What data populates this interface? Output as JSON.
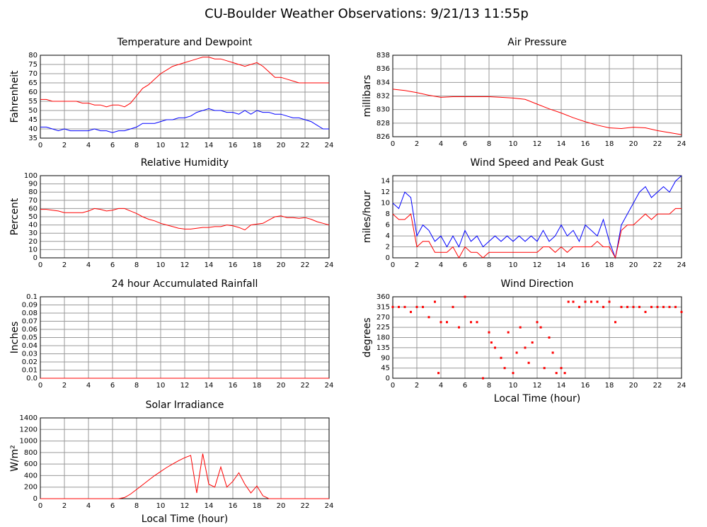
{
  "title": "CU-Boulder Weather Observations: 9/21/13 11:55p",
  "chart_data": [
    {
      "type": "line",
      "title": "Temperature and Dewpoint",
      "ylabel": "Fahrenheit",
      "x": [
        0,
        0.5,
        1,
        1.5,
        2,
        2.5,
        3,
        3.5,
        4,
        4.5,
        5,
        5.5,
        6,
        6.5,
        7,
        7.5,
        8,
        8.5,
        9,
        9.5,
        10,
        10.5,
        11,
        11.5,
        12,
        12.5,
        13,
        13.5,
        14,
        14.5,
        15,
        15.5,
        16,
        16.5,
        17,
        17.5,
        18,
        18.5,
        19,
        19.5,
        20,
        20.5,
        21,
        21.5,
        22,
        22.5,
        23,
        23.5,
        24
      ],
      "series": [
        {
          "color": "#ff0000",
          "values": [
            56,
            56,
            55,
            55,
            55,
            55,
            55,
            54,
            54,
            53,
            53,
            52,
            53,
            53,
            52,
            54,
            58,
            62,
            64,
            67,
            70,
            72,
            74,
            75,
            76,
            77,
            78,
            79,
            79,
            78,
            78,
            77,
            76,
            75,
            74,
            75,
            76,
            74,
            71,
            68,
            68,
            67,
            66,
            65,
            65,
            65,
            65,
            65,
            65
          ]
        },
        {
          "color": "#0000ff",
          "values": [
            41,
            41,
            40,
            39,
            40,
            39,
            39,
            39,
            39,
            40,
            39,
            39,
            38,
            39,
            39,
            40,
            41,
            43,
            43,
            43,
            44,
            45,
            45,
            46,
            46,
            47,
            49,
            50,
            51,
            50,
            50,
            49,
            49,
            48,
            50,
            48,
            50,
            49,
            49,
            48,
            48,
            47,
            46,
            46,
            45,
            44,
            42,
            40,
            40
          ]
        }
      ],
      "xlim": [
        0,
        24
      ],
      "ylim": [
        35,
        80
      ],
      "xticks": [
        0,
        2,
        4,
        6,
        8,
        10,
        12,
        14,
        16,
        18,
        20,
        22,
        24
      ],
      "yticks": [
        35,
        40,
        45,
        50,
        55,
        60,
        65,
        70,
        75,
        80
      ],
      "grid": true
    },
    {
      "type": "line",
      "title": "Air Pressure",
      "ylabel": "millibars",
      "x": [
        0,
        1,
        2,
        3,
        4,
        5,
        6,
        7,
        8,
        9,
        10,
        11,
        12,
        13,
        14,
        15,
        16,
        17,
        18,
        19,
        20,
        21,
        22,
        23,
        24
      ],
      "series": [
        {
          "color": "#ff0000",
          "values": [
            833,
            832.8,
            832.5,
            832.1,
            831.8,
            831.9,
            831.9,
            831.9,
            831.9,
            831.8,
            831.7,
            831.5,
            830.8,
            830.1,
            829.5,
            828.8,
            828.2,
            827.7,
            827.3,
            827.2,
            827.4,
            827.3,
            826.9,
            826.6,
            826.3
          ]
        }
      ],
      "xlim": [
        0,
        24
      ],
      "ylim": [
        826,
        838
      ],
      "xticks": [
        0,
        2,
        4,
        6,
        8,
        10,
        12,
        14,
        16,
        18,
        20,
        22,
        24
      ],
      "yticks": [
        826,
        828,
        830,
        832,
        834,
        836,
        838
      ],
      "grid": true
    },
    {
      "type": "line",
      "title": "Relative Humidity",
      "ylabel": "Percent",
      "x": [
        0,
        0.5,
        1,
        1.5,
        2,
        2.5,
        3,
        3.5,
        4,
        4.5,
        5,
        5.5,
        6,
        6.5,
        7,
        7.5,
        8,
        8.5,
        9,
        9.5,
        10,
        10.5,
        11,
        11.5,
        12,
        12.5,
        13,
        13.5,
        14,
        14.5,
        15,
        15.5,
        16,
        16.5,
        17,
        17.5,
        18,
        18.5,
        19,
        19.5,
        20,
        20.5,
        21,
        21.5,
        22,
        22.5,
        23,
        23.5,
        24
      ],
      "series": [
        {
          "color": "#ff0000",
          "values": [
            59,
            59,
            58,
            57,
            55,
            55,
            55,
            55,
            57,
            60,
            59,
            57,
            58,
            60,
            60,
            57,
            54,
            50,
            47,
            45,
            42,
            40,
            38,
            36,
            35,
            35,
            36,
            37,
            37,
            38,
            38,
            40,
            39,
            37,
            34,
            40,
            41,
            42,
            46,
            50,
            51,
            49,
            49,
            48,
            49,
            47,
            44,
            42,
            40
          ]
        }
      ],
      "xlim": [
        0,
        24
      ],
      "ylim": [
        0,
        100
      ],
      "xticks": [
        0,
        2,
        4,
        6,
        8,
        10,
        12,
        14,
        16,
        18,
        20,
        22,
        24
      ],
      "yticks": [
        0,
        10,
        20,
        30,
        40,
        50,
        60,
        70,
        80,
        90,
        100
      ],
      "grid": true
    },
    {
      "type": "line",
      "title": "Wind Speed and Peak Gust",
      "ylabel": "miles/hour",
      "x": [
        0,
        0.5,
        1,
        1.5,
        2,
        2.5,
        3,
        3.5,
        4,
        4.5,
        5,
        5.5,
        6,
        6.5,
        7,
        7.5,
        8,
        8.5,
        9,
        9.5,
        10,
        10.5,
        11,
        11.5,
        12,
        12.5,
        13,
        13.5,
        14,
        14.5,
        15,
        15.5,
        16,
        16.5,
        17,
        17.5,
        18,
        18.5,
        19,
        19.5,
        20,
        20.5,
        21,
        21.5,
        22,
        22.5,
        23,
        23.5,
        24
      ],
      "series": [
        {
          "color": "#0000ff",
          "values": [
            10,
            9,
            12,
            11,
            4,
            6,
            5,
            3,
            4,
            2,
            4,
            2,
            5,
            3,
            4,
            2,
            3,
            4,
            3,
            4,
            3,
            4,
            3,
            4,
            3,
            5,
            3,
            4,
            6,
            4,
            5,
            3,
            6,
            5,
            4,
            7,
            3,
            0,
            6,
            8,
            10,
            12,
            13,
            11,
            12,
            13,
            12,
            14,
            15
          ]
        },
        {
          "color": "#ff0000",
          "values": [
            8,
            7,
            7,
            8,
            2,
            3,
            3,
            1,
            1,
            1,
            2,
            0,
            2,
            1,
            1,
            0,
            1,
            1,
            1,
            1,
            1,
            1,
            1,
            1,
            1,
            2,
            2,
            1,
            2,
            1,
            2,
            2,
            2,
            2,
            3,
            2,
            2,
            0,
            5,
            6,
            6,
            7,
            8,
            7,
            8,
            8,
            8,
            9,
            9
          ]
        }
      ],
      "xlim": [
        0,
        24
      ],
      "ylim": [
        0,
        15
      ],
      "xticks": [
        0,
        2,
        4,
        6,
        8,
        10,
        12,
        14,
        16,
        18,
        20,
        22,
        24
      ],
      "yticks": [
        0,
        2,
        4,
        6,
        8,
        10,
        12,
        14
      ],
      "grid": true
    },
    {
      "type": "line",
      "title": "24 hour Accumulated Rainfall",
      "ylabel": "Inches",
      "x": [
        0,
        24
      ],
      "series": [
        {
          "color": "#ff0000",
          "values": [
            0,
            0
          ]
        }
      ],
      "xlim": [
        0,
        24
      ],
      "ylim": [
        0,
        0.1
      ],
      "xticks": [
        0,
        2,
        4,
        6,
        8,
        10,
        12,
        14,
        16,
        18,
        20,
        22,
        24
      ],
      "yticks": [
        {
          "value": 0,
          "label": "0.0"
        },
        0.01,
        0.02,
        0.03,
        0.04,
        0.05,
        0.06,
        0.07,
        0.08,
        0.09,
        0.1
      ],
      "grid": true
    },
    {
      "type": "scatter",
      "title": "Wind Direction",
      "ylabel": "degrees",
      "xlabel": "Local Time (hour)",
      "x": [
        0,
        0.5,
        1,
        1.5,
        2,
        2.5,
        3,
        3.5,
        3.8,
        4,
        4.5,
        5,
        5.5,
        6,
        6.5,
        7,
        7.5,
        8,
        8.2,
        8.5,
        9,
        9.3,
        9.6,
        10,
        10.3,
        10.6,
        11,
        11.3,
        11.6,
        12,
        12.3,
        12.6,
        13,
        13.3,
        13.6,
        14,
        14.3,
        14.6,
        15,
        15.5,
        16,
        16.5,
        17,
        17.5,
        18,
        18.5,
        19,
        19.5,
        20,
        20.5,
        21,
        21.5,
        22,
        22.5,
        23,
        23.5,
        24
      ],
      "series": [
        {
          "color": "#ff0000",
          "values": [
            315,
            315,
            315,
            293,
            315,
            315,
            270,
            338,
            23,
            248,
            248,
            315,
            225,
            360,
            248,
            248,
            0,
            203,
            158,
            135,
            90,
            45,
            203,
            23,
            113,
            225,
            135,
            68,
            158,
            248,
            225,
            45,
            180,
            113,
            23,
            45,
            23,
            338,
            338,
            315,
            338,
            338,
            338,
            315,
            338,
            248,
            315,
            315,
            315,
            315,
            293,
            315,
            315,
            315,
            315,
            315,
            293
          ]
        }
      ],
      "xlim": [
        0,
        24
      ],
      "ylim": [
        0,
        360
      ],
      "xticks": [
        0,
        2,
        4,
        6,
        8,
        10,
        12,
        14,
        16,
        18,
        20,
        22,
        24
      ],
      "yticks": [
        0,
        45,
        90,
        135,
        180,
        225,
        270,
        315,
        360
      ],
      "grid": true
    },
    {
      "type": "line",
      "title": "Solar Irradiance",
      "ylabel": "W/m²",
      "xlabel": "Local Time (hour)",
      "x": [
        0,
        0.5,
        1,
        1.5,
        2,
        2.5,
        3,
        3.5,
        4,
        4.5,
        5,
        5.5,
        6,
        6.5,
        7,
        7.5,
        8,
        8.5,
        9,
        9.5,
        10,
        10.5,
        11,
        11.5,
        12,
        12.5,
        13,
        13.5,
        14,
        14.5,
        15,
        15.5,
        16,
        16.5,
        17,
        17.5,
        18,
        18.5,
        19,
        19.5,
        20,
        20.5,
        21,
        21.5,
        22,
        22.5,
        23,
        23.5,
        24
      ],
      "series": [
        {
          "color": "#ff0000",
          "values": [
            0,
            0,
            0,
            0,
            0,
            0,
            0,
            0,
            0,
            0,
            0,
            0,
            0,
            0,
            20,
            80,
            160,
            240,
            320,
            400,
            470,
            540,
            600,
            660,
            710,
            750,
            100,
            780,
            250,
            200,
            550,
            200,
            300,
            450,
            250,
            100,
            220,
            50,
            0,
            0,
            0,
            0,
            0,
            0,
            0,
            0,
            0,
            0,
            0
          ]
        }
      ],
      "xlim": [
        0,
        24
      ],
      "ylim": [
        0,
        1400
      ],
      "xticks": [
        0,
        2,
        4,
        6,
        8,
        10,
        12,
        14,
        16,
        18,
        20,
        22,
        24
      ],
      "yticks": [
        0,
        200,
        400,
        600,
        800,
        1000,
        1200,
        1400
      ],
      "grid": true
    }
  ]
}
